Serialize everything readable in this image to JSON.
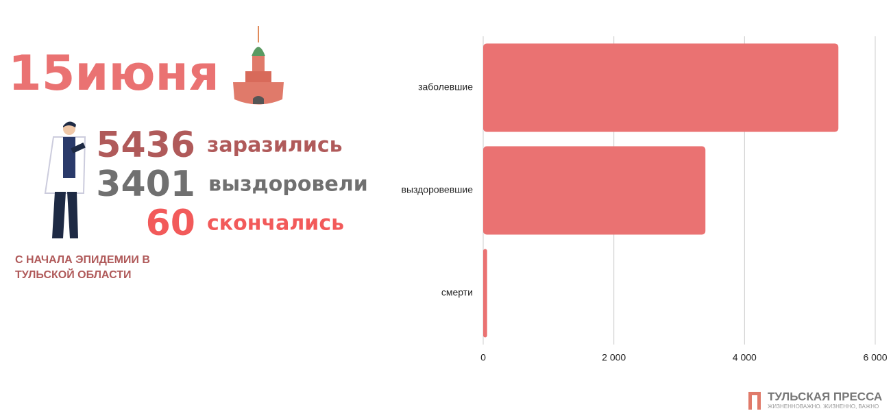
{
  "infographic": {
    "date": "15июня",
    "stats": [
      {
        "number": "5436",
        "label": "заразились"
      },
      {
        "number": "3401",
        "label": "выздоровели"
      },
      {
        "number": "60",
        "label": "скончались"
      }
    ],
    "caption_line1": "С НАЧАЛА ЭПИДЕМИИ В",
    "caption_line2": "ТУЛЬСКОЙ ОБЛАСТИ"
  },
  "logo": {
    "name": "ТУЛЬСКАЯ ПРЕССА",
    "slogan": "ЖИЗНЕННОВАЖНО. ЖИЗНЕННО, ВАЖНО"
  },
  "chart_data": {
    "type": "hbar",
    "categories": [
      "заболевшие",
      "выздоровевшие",
      "смерти"
    ],
    "values": [
      5436,
      3401,
      60
    ],
    "color": "#ea7272",
    "xlim": [
      0,
      6000
    ],
    "xticks": [
      0,
      {
        "value": 2000,
        "label": "2 000"
      },
      {
        "value": 4000,
        "label": "4 000"
      },
      {
        "value": 6000,
        "label": "6 000"
      }
    ],
    "grid": true
  }
}
